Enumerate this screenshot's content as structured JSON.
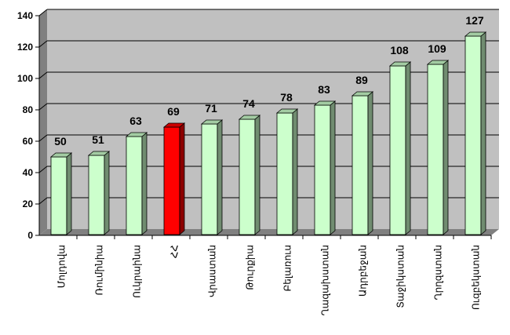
{
  "chart_data": {
    "type": "bar",
    "style": "3d-column",
    "title": "",
    "xlabel": "",
    "ylabel": "",
    "ylim": [
      0,
      140
    ],
    "yticks": [
      0,
      20,
      40,
      60,
      80,
      100,
      120,
      140
    ],
    "grid": true,
    "legend": "none",
    "categories": [
      "Մոլդովա",
      "Ռումինիա",
      "Ուկրաինա",
      "ՀՀ",
      "Վրաստան",
      "Թուրքիա",
      "Բելառուս",
      "Ղազախստան",
      "Ադրբեջան",
      "Տաջիկստան",
      "Ղրղզստան",
      "Ուզբեկստան"
    ],
    "values": [
      50,
      51,
      63,
      69,
      71,
      74,
      78,
      83,
      89,
      108,
      109,
      127
    ],
    "highlight_index": 3,
    "colors": {
      "bar": "#ccffcc",
      "bar_highlight": "#ff0000",
      "wall": "#c0c0c0",
      "floor": "#808080",
      "gridline": "#000000"
    }
  }
}
